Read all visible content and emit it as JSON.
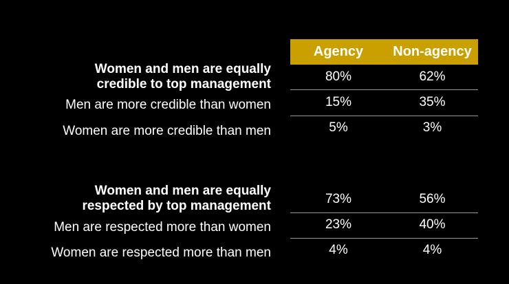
{
  "chart_data": {
    "type": "table",
    "columns": [
      "Agency",
      "Non-agency"
    ],
    "sections": [
      {
        "rows": [
          {
            "label_lines": [
              "Women and men are equally",
              "credible to top management"
            ],
            "bold": true,
            "values": [
              "80%",
              "62%"
            ]
          },
          {
            "label_lines": [
              "Men are more credible than women"
            ],
            "bold": false,
            "values": [
              "15%",
              "35%"
            ]
          },
          {
            "label_lines": [
              "Women are more credible than men"
            ],
            "bold": false,
            "values": [
              "5%",
              "3%"
            ]
          }
        ]
      },
      {
        "rows": [
          {
            "label_lines": [
              "Women and men are equally",
              "respected by top management"
            ],
            "bold": true,
            "values": [
              "73%",
              "56%"
            ]
          },
          {
            "label_lines": [
              "Men are respected more than women"
            ],
            "bold": false,
            "values": [
              "23%",
              "40%"
            ]
          },
          {
            "label_lines": [
              "Women are respected more than men"
            ],
            "bold": false,
            "values": [
              "4%",
              "4%"
            ]
          }
        ]
      }
    ]
  },
  "colors": {
    "header_bg": "#c9a000",
    "background": "#000000",
    "text": "#ffffff",
    "separator": "#9a9a9a"
  }
}
